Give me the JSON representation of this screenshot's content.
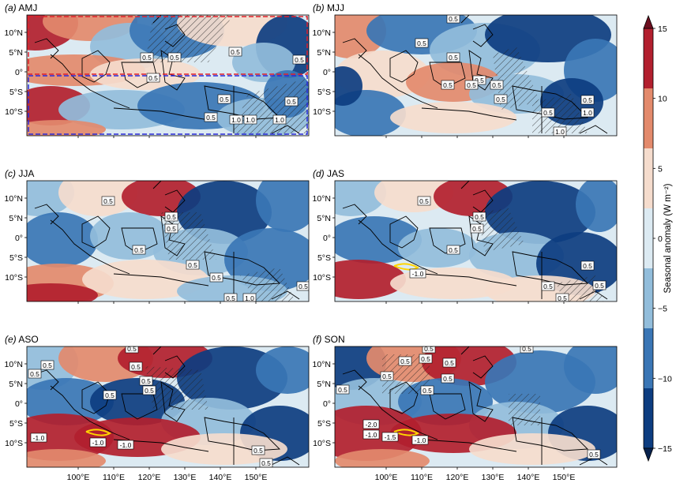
{
  "figure": {
    "panels": [
      {
        "tag": "(a)",
        "season": "AMJ",
        "boxes": true,
        "contour_labels": [
          "0.5",
          "0.5",
          "0.5",
          "0.5",
          "0.5",
          "0.5",
          "0.5",
          "0.5",
          "1.0",
          "1.0",
          "1.0"
        ]
      },
      {
        "tag": "(b)",
        "season": "MJJ",
        "contour_labels": [
          "0.5",
          "0.5",
          "0.5",
          "0.5",
          "0.5",
          "0.5",
          "0.5",
          "0.5",
          "0.5",
          "0.5",
          "1.0",
          "1.0"
        ]
      },
      {
        "tag": "(c)",
        "season": "JJA",
        "contour_labels": [
          "0.5",
          "0.5",
          "0.5",
          "0.5",
          "0.5",
          "0.5",
          "0.5",
          "0.5",
          "1.0"
        ]
      },
      {
        "tag": "(d)",
        "season": "JAS",
        "contour_labels": [
          "0.5",
          "0.5",
          "0.5",
          "0.5",
          "0.5",
          "0.5",
          "0.5",
          "0.5",
          "-1.0"
        ]
      },
      {
        "tag": "(e)",
        "season": "ASO",
        "contour_labels": [
          "0.5",
          "0.5",
          "0.5",
          "0.5",
          "0.5",
          "0.5",
          "0.5",
          "0.5",
          "0.5",
          "-1.0",
          "-1.0",
          "-1.0"
        ]
      },
      {
        "tag": "(f)",
        "season": "SON",
        "contour_labels": [
          "0.5",
          "0.5",
          "0.5",
          "0.5",
          "0.5",
          "0.5",
          "0.5",
          "0.5",
          "0.5",
          "0.5",
          "-2.0",
          "-1.0",
          "-1.5",
          "-1.0"
        ]
      }
    ],
    "lat_ticks": [
      "10°N",
      "5°N",
      "0°",
      "5°S",
      "10°S"
    ],
    "lon_ticks": [
      "100°E",
      "110°E",
      "120°E",
      "130°E",
      "140°E",
      "150°E"
    ],
    "colorbar": {
      "label": "Seasonal anomaly (W m⁻²)",
      "ticks": [
        "15",
        "10",
        "5",
        "0",
        "−5",
        "−10",
        "−15"
      ],
      "colors": [
        "#0d3d80",
        "#3a76b5",
        "#92bddb",
        "#dceaf2",
        "#f5dccd",
        "#e38a6c",
        "#b21f2e"
      ]
    }
  }
}
